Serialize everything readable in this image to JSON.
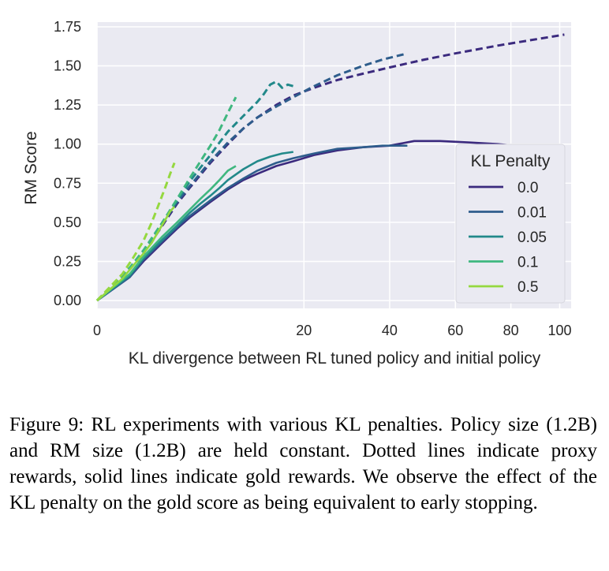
{
  "chart_data": {
    "type": "line",
    "title": "",
    "xlabel": "KL divergence between RL tuned policy and initial policy",
    "ylabel": "RM Score",
    "x_scale": "sqrt",
    "xlim": [
      0,
      105
    ],
    "ylim": [
      -0.05,
      1.78
    ],
    "x_ticks": [
      0,
      20,
      40,
      60,
      80,
      100
    ],
    "y_ticks": [
      0.0,
      0.25,
      0.5,
      0.75,
      1.0,
      1.25,
      1.5,
      1.75
    ],
    "x_tick_labels": [
      "0",
      "20",
      "40",
      "60",
      "80",
      "100"
    ],
    "y_tick_labels": [
      "0.00",
      "0.25",
      "0.50",
      "0.75",
      "1.00",
      "1.25",
      "1.50",
      "1.75"
    ],
    "grid": true,
    "background": "#eaeaf2",
    "legend": {
      "title": "KL Penalty",
      "placement": "right"
    },
    "series": [
      {
        "name": "0.0",
        "color": "#3b2a7e",
        "style": "solid",
        "x": [
          0,
          0.5,
          1,
          2,
          3,
          4,
          6,
          8,
          10,
          12,
          15,
          18,
          22,
          27,
          33,
          40,
          47,
          55,
          65,
          75,
          88,
          102
        ],
        "y": [
          0.0,
          0.15,
          0.25,
          0.37,
          0.46,
          0.53,
          0.63,
          0.71,
          0.77,
          0.81,
          0.86,
          0.89,
          0.93,
          0.96,
          0.98,
          0.99,
          1.02,
          1.02,
          1.01,
          1.0,
          0.98,
          0.97
        ]
      },
      {
        "name": "0.0 proxy",
        "color": "#3b2a7e",
        "style": "dashed",
        "x": [
          0,
          0.5,
          1,
          2,
          3,
          4,
          6,
          8,
          10,
          12,
          15,
          18,
          22,
          27,
          33,
          40,
          50,
          60,
          75,
          90,
          102
        ],
        "y": [
          0.0,
          0.2,
          0.3,
          0.48,
          0.62,
          0.72,
          0.88,
          1.0,
          1.1,
          1.17,
          1.25,
          1.31,
          1.36,
          1.41,
          1.45,
          1.49,
          1.54,
          1.58,
          1.63,
          1.67,
          1.7
        ]
      },
      {
        "name": "0.01",
        "color": "#2e5d8c",
        "style": "solid",
        "x": [
          0,
          0.5,
          1,
          2,
          3,
          4,
          6,
          8,
          10,
          12,
          15,
          18,
          22,
          27,
          33,
          38,
          45
        ],
        "y": [
          0.0,
          0.15,
          0.26,
          0.38,
          0.47,
          0.54,
          0.64,
          0.72,
          0.78,
          0.83,
          0.88,
          0.91,
          0.94,
          0.97,
          0.98,
          0.99,
          0.99
        ]
      },
      {
        "name": "0.01 proxy",
        "color": "#2e5d8c",
        "style": "dashed",
        "x": [
          0,
          0.5,
          1,
          2,
          3,
          4,
          6,
          8,
          10,
          12,
          15,
          18,
          22,
          27,
          33,
          38,
          45
        ],
        "y": [
          0.0,
          0.2,
          0.3,
          0.49,
          0.63,
          0.73,
          0.89,
          1.01,
          1.1,
          1.17,
          1.24,
          1.3,
          1.37,
          1.44,
          1.5,
          1.54,
          1.58
        ]
      },
      {
        "name": "0.05",
        "color": "#22898a",
        "style": "solid",
        "x": [
          0,
          0.5,
          1,
          2,
          3,
          4,
          5,
          6,
          7,
          8,
          10,
          12,
          14,
          16,
          18
        ],
        "y": [
          0.0,
          0.16,
          0.27,
          0.39,
          0.48,
          0.56,
          0.62,
          0.67,
          0.72,
          0.77,
          0.84,
          0.89,
          0.92,
          0.94,
          0.95
        ]
      },
      {
        "name": "0.05 proxy",
        "color": "#22898a",
        "style": "dashed",
        "x": [
          0,
          0.5,
          1,
          2,
          3,
          4,
          5,
          6,
          7,
          8,
          10,
          12,
          13,
          14,
          15,
          16,
          17,
          18
        ],
        "y": [
          0.0,
          0.2,
          0.31,
          0.5,
          0.64,
          0.76,
          0.85,
          0.93,
          1.01,
          1.08,
          1.18,
          1.27,
          1.32,
          1.38,
          1.4,
          1.36,
          1.38,
          1.37
        ]
      },
      {
        "name": "0.1",
        "color": "#3fb77f",
        "style": "solid",
        "x": [
          0,
          0.5,
          1,
          2,
          3,
          4,
          5,
          6,
          7,
          8,
          9
        ],
        "y": [
          0.0,
          0.17,
          0.28,
          0.41,
          0.5,
          0.58,
          0.65,
          0.71,
          0.77,
          0.83,
          0.86
        ]
      },
      {
        "name": "0.1 proxy",
        "color": "#3fb77f",
        "style": "dashed",
        "x": [
          0,
          0.5,
          1,
          2,
          3,
          4,
          5,
          6,
          7,
          8,
          9
        ],
        "y": [
          0.0,
          0.21,
          0.32,
          0.5,
          0.65,
          0.78,
          0.89,
          0.99,
          1.09,
          1.2,
          1.3
        ]
      },
      {
        "name": "0.5",
        "color": "#95d840",
        "style": "solid",
        "x": [
          0,
          0.3,
          0.6,
          1,
          1.4,
          1.8,
          2.2,
          2.5,
          2.8
        ],
        "y": [
          0.0,
          0.14,
          0.22,
          0.3,
          0.37,
          0.45,
          0.52,
          0.57,
          0.6
        ]
      },
      {
        "name": "0.5 proxy",
        "color": "#95d840",
        "style": "dashed",
        "x": [
          0,
          0.3,
          0.6,
          1,
          1.4,
          1.8,
          2.2,
          2.5,
          2.8
        ],
        "y": [
          0.0,
          0.17,
          0.27,
          0.38,
          0.5,
          0.62,
          0.73,
          0.81,
          0.88
        ]
      }
    ]
  },
  "caption": "Figure 9: RL experiments with various KL penalties. Policy size (1.2B) and RM size (1.2B) are held constant. Dotted lines indicate proxy rewards, solid lines indicate gold rewards. We observe the effect of the KL penalty on the gold score as being equivalent to early stopping."
}
